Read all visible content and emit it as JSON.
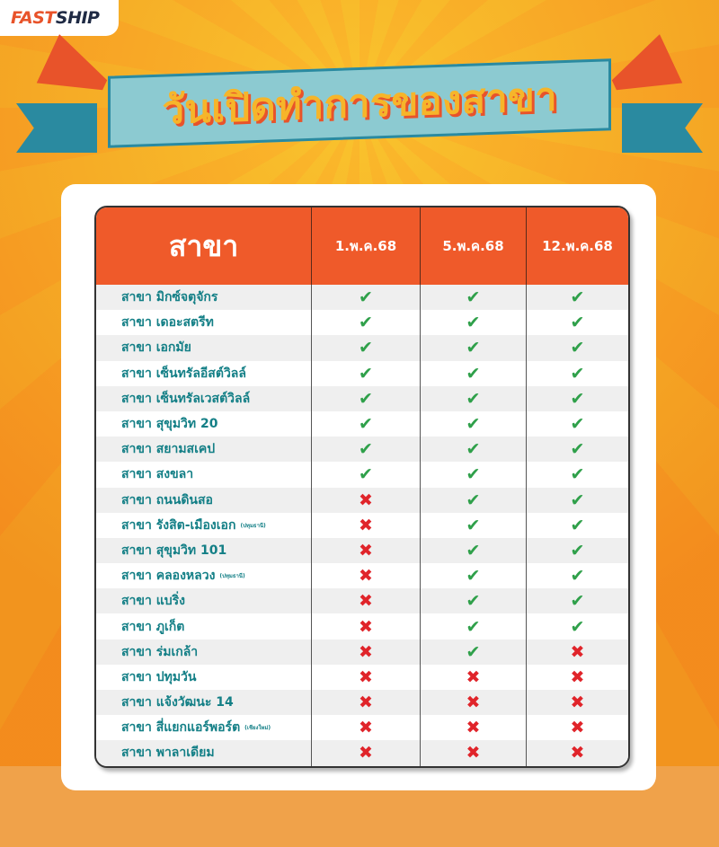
{
  "logo": {
    "brand_a": "FAST",
    "brand_b": "SHIP"
  },
  "title": "วันเปิดทำการของสาขา",
  "table": {
    "headers": [
      "สาขา",
      "1.พ.ค.68",
      "5.พ.ค.68",
      "12.พ.ค.68"
    ],
    "rows": [
      {
        "name": "สาขา มิกซ์จตุจักร",
        "note": "",
        "open": [
          true,
          true,
          true
        ]
      },
      {
        "name": "สาขา เดอะสตรีท",
        "note": "",
        "open": [
          true,
          true,
          true
        ]
      },
      {
        "name": "สาขา เอกมัย",
        "note": "",
        "open": [
          true,
          true,
          true
        ]
      },
      {
        "name": "สาขา เซ็นทรัลอีสต์วิลล์",
        "note": "",
        "open": [
          true,
          true,
          true
        ]
      },
      {
        "name": "สาขา เซ็นทรัลเวสต์วิลล์",
        "note": "",
        "open": [
          true,
          true,
          true
        ]
      },
      {
        "name": "สาขา สุขุมวิท 20",
        "note": "",
        "open": [
          true,
          true,
          true
        ]
      },
      {
        "name": "สาขา สยามสเคป",
        "note": "",
        "open": [
          true,
          true,
          true
        ]
      },
      {
        "name": "สาขา สงขลา",
        "note": "",
        "open": [
          true,
          true,
          true
        ]
      },
      {
        "name": "สาขา ถนนดินสอ",
        "note": "",
        "open": [
          false,
          true,
          true
        ]
      },
      {
        "name": "สาขา รังสิต-เมืองเอก",
        "note": "(ปทุมธานี)",
        "open": [
          false,
          true,
          true
        ]
      },
      {
        "name": "สาขา สุขุมวิท 101",
        "note": "",
        "open": [
          false,
          true,
          true
        ]
      },
      {
        "name": "สาขา คลองหลวง",
        "note": "(ปทุมธานี)",
        "open": [
          false,
          true,
          true
        ]
      },
      {
        "name": "สาขา แบริ่ง",
        "note": "",
        "open": [
          false,
          true,
          true
        ]
      },
      {
        "name": "สาขา ภูเก็ต",
        "note": "",
        "open": [
          false,
          true,
          true
        ]
      },
      {
        "name": "สาขา ร่มเกล้า",
        "note": "",
        "open": [
          false,
          true,
          false
        ]
      },
      {
        "name": "สาขา ปทุมวัน",
        "note": "",
        "open": [
          false,
          false,
          false
        ]
      },
      {
        "name": "สาขา แจ้งวัฒนะ 14",
        "note": "",
        "open": [
          false,
          false,
          false
        ]
      },
      {
        "name": "สาขา สี่แยกแอร์พอร์ต",
        "note": "(เชียงใหม่)",
        "open": [
          false,
          false,
          false
        ]
      },
      {
        "name": "สาขา พาลาเดียม",
        "note": "",
        "open": [
          false,
          false,
          false
        ]
      }
    ]
  },
  "icons": {
    "open": "check-icon",
    "closed": "cross-icon"
  },
  "colors": {
    "header": "#ef5a2a",
    "branch_text": "#137f86",
    "check": "#2fa04a",
    "cross": "#e0242a"
  }
}
